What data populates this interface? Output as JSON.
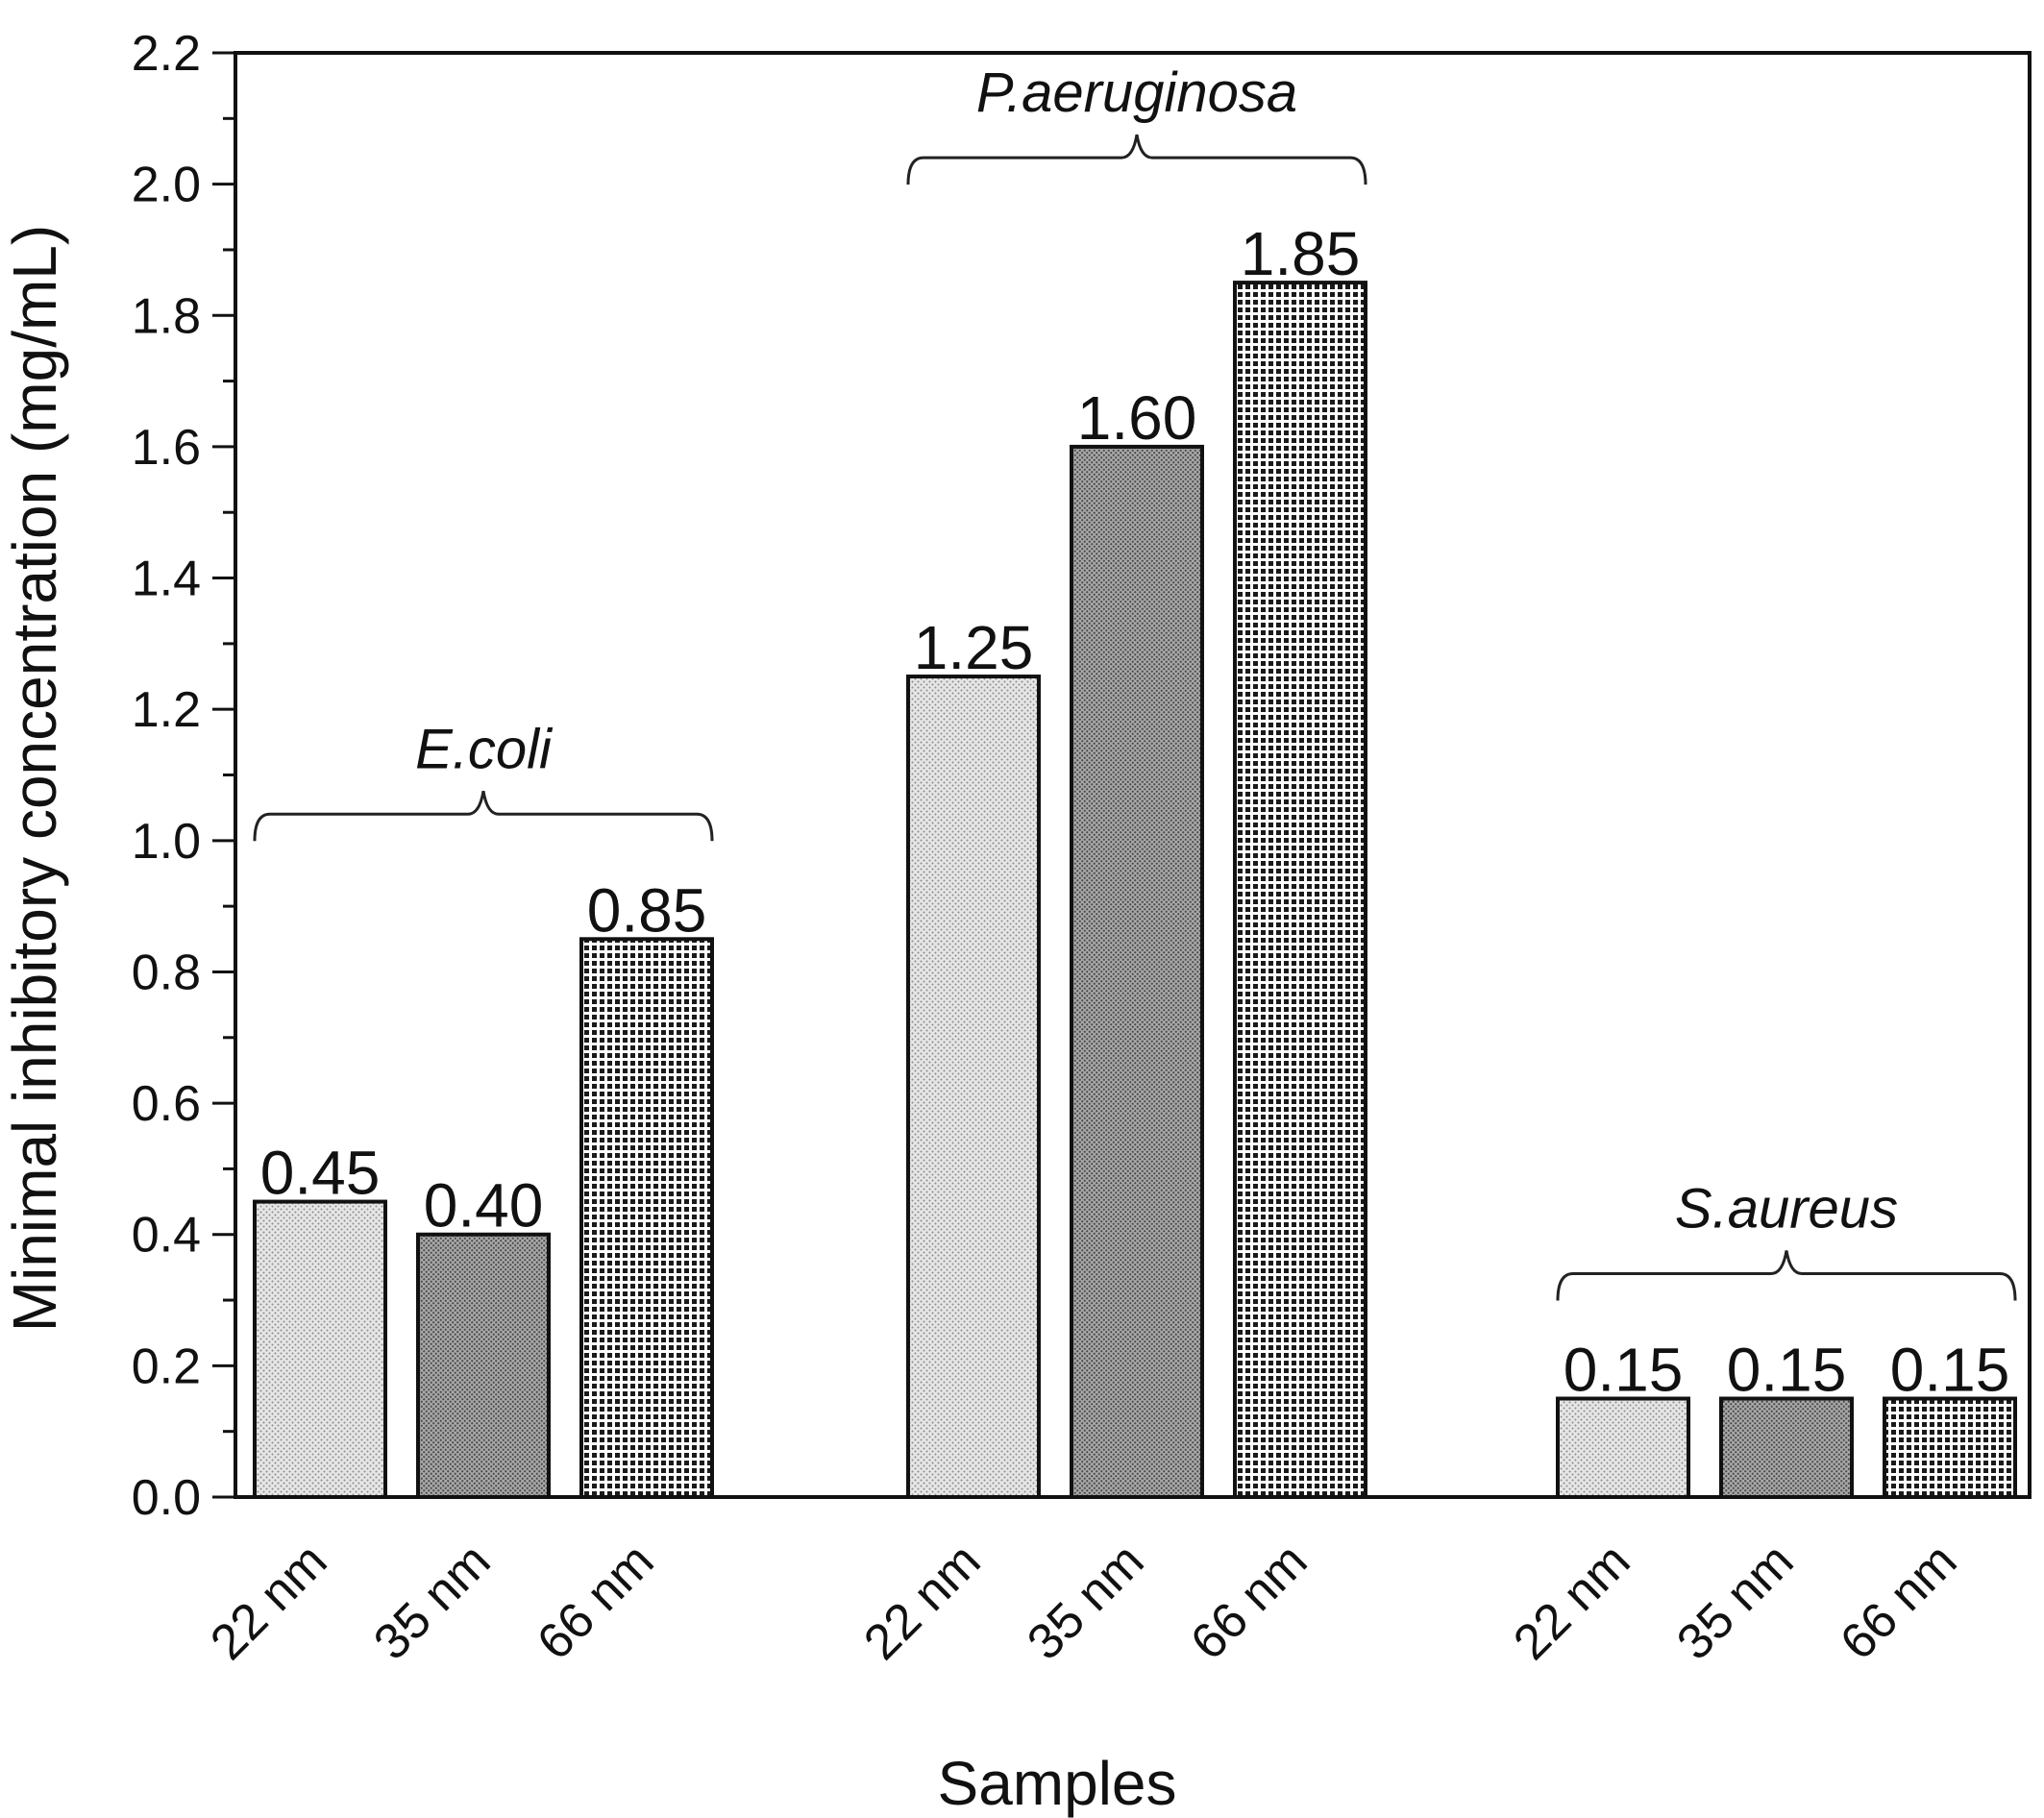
{
  "chart_data": {
    "type": "bar",
    "title": "",
    "xlabel": "Samples",
    "ylabel": "Minimal inhibitory concentration (mg/mL)",
    "ylim": [
      0,
      2.2
    ],
    "yticks": [
      "0.0",
      "0.2",
      "0.4",
      "0.6",
      "0.8",
      "1.0",
      "1.2",
      "1.4",
      "1.6",
      "1.8",
      "2.0",
      "2.2"
    ],
    "groups": [
      {
        "name": "E.coli",
        "bars": [
          {
            "category": "22 nm",
            "value": 0.45,
            "label": "0.45"
          },
          {
            "category": "35 nm",
            "value": 0.4,
            "label": "0.40"
          },
          {
            "category": "66 nm",
            "value": 0.85,
            "label": "0.85"
          }
        ]
      },
      {
        "name": "P.aeruginosa",
        "bars": [
          {
            "category": "22 nm",
            "value": 1.25,
            "label": "1.25"
          },
          {
            "category": "35 nm",
            "value": 1.6,
            "label": "1.60"
          },
          {
            "category": "66 nm",
            "value": 1.85,
            "label": "1.85"
          }
        ]
      },
      {
        "name": "S.aureus",
        "bars": [
          {
            "category": "22 nm",
            "value": 0.15,
            "label": "0.15"
          },
          {
            "category": "35 nm",
            "value": 0.15,
            "label": "0.15"
          },
          {
            "category": "66 nm",
            "value": 0.15,
            "label": "0.15"
          }
        ]
      }
    ],
    "fill_patterns": [
      "light-dots",
      "medium-dots",
      "dark-checker"
    ],
    "grid": false
  }
}
